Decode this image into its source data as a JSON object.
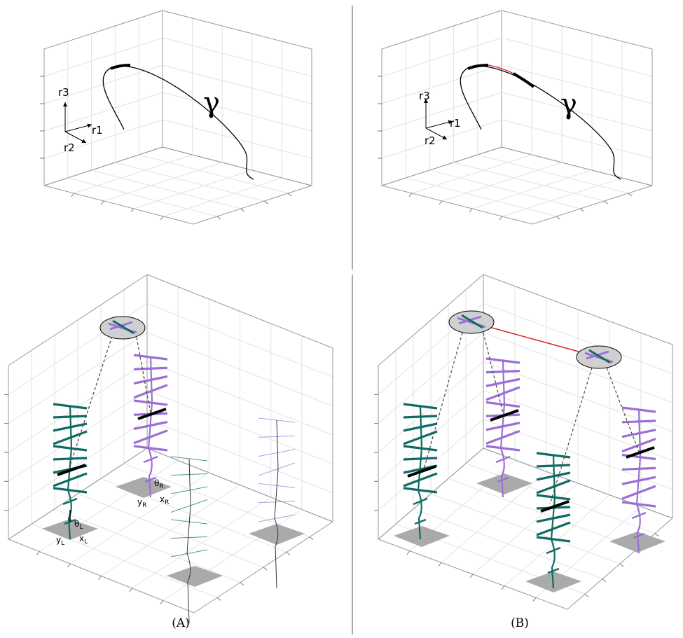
{
  "panels": [
    {
      "caption": "(A)",
      "top": {
        "axes": [
          "r1",
          "r2",
          "r3"
        ],
        "curve_label": "γ"
      },
      "bottom": {
        "feet": [
          {
            "theta": "θ",
            "theta_sub": "L",
            "x": "x",
            "x_sub": "L",
            "y": "y",
            "y_sub": "L"
          },
          {
            "theta": "θ",
            "theta_sub": "R",
            "x": "x",
            "x_sub": "R",
            "y": "y",
            "y_sub": "R"
          }
        ]
      }
    },
    {
      "caption": "(B)",
      "top": {
        "axes": [
          "r1",
          "r2",
          "r3"
        ],
        "curve_label": "γ"
      }
    }
  ]
}
